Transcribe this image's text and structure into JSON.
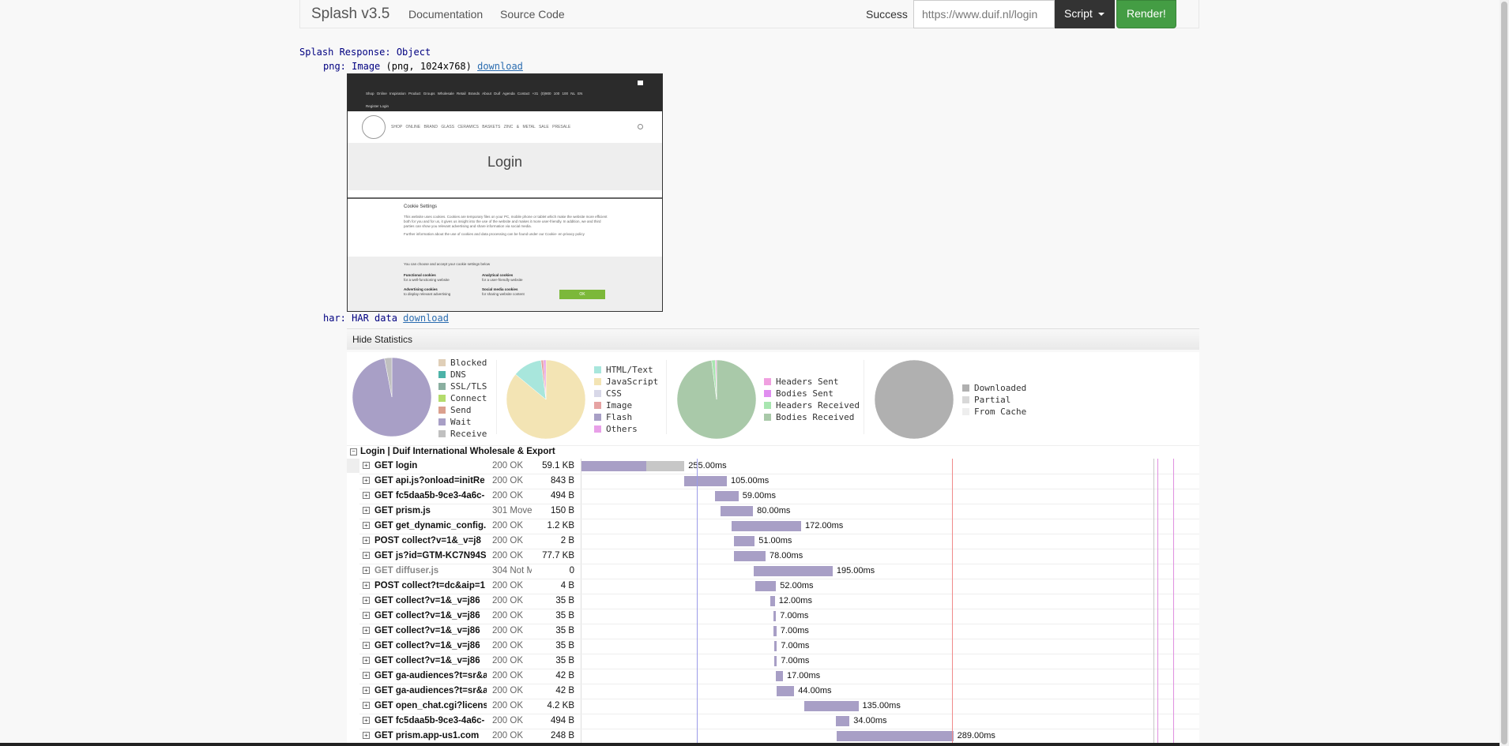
{
  "navbar": {
    "brand": "Splash v3.5",
    "links": [
      "Documentation",
      "Source Code"
    ],
    "status": "Success",
    "url_value": "https://www.duif.nl/login",
    "script_button": "Script",
    "render_button": "Render!"
  },
  "response": {
    "header_key": "Splash Response:",
    "header_type": "Object",
    "png_key": "png:",
    "png_type": "Image",
    "png_meta": "(png, 1024x768)",
    "png_download": "download",
    "har_key": "har:",
    "har_type": "HAR data",
    "har_download": "download"
  },
  "thumbnail": {
    "top_nav": "Shop Online  Inspiration  Product Groups  Wholesale  Retail  Brands  About Duif  Agenda  Contact  +31 (0)900 100 100  NL  EN",
    "top_nav2": "Register  Login",
    "menu": "SHOP ONLINE  BRAND  GLASS  CERAMICS  BASKETS  ZINC & METAL  SALE  PRESALE",
    "hero_title": "Login",
    "cookie_title": "Cookie Settings",
    "cookie_text": "This website uses cookies. Cookies are temporary files on your PC, mobile phone or tablet which make the website more efficient both for you and for us, it gives us insight into the use of the website and makes it more user-friendly. In addition, we and third parties can show you relevant advertising and share information via social media.",
    "cookie_text2": "Further information about the use of cookies and data processing can be found under our Cookie- en privacy policy",
    "cookie_choose": "You can choose and accept your cookie settings below",
    "opt1_title": "Functional cookies",
    "opt1_sub": "for a well-functioning website",
    "opt2_title": "Analytical cookies",
    "opt2_sub": "for a user-friendly website",
    "opt3_title": "Advertising cookies",
    "opt3_sub": "to display relevant advertising",
    "opt4_title": "Social media cookies",
    "opt4_sub": "for sharing website content",
    "ok": "OK"
  },
  "stats": {
    "toggle_label": "Hide Statistics",
    "timing_legend": [
      {
        "label": "Blocked",
        "color": "#e0cfb8"
      },
      {
        "label": "DNS",
        "color": "#4db3a8"
      },
      {
        "label": "SSL/TLS",
        "color": "#8aafa0"
      },
      {
        "label": "Connect",
        "color": "#b4dc6c"
      },
      {
        "label": "Send",
        "color": "#dba08e"
      },
      {
        "label": "Wait",
        "color": "#a89fc6"
      },
      {
        "label": "Receive",
        "color": "#c0c0c0"
      }
    ],
    "type_legend": [
      {
        "label": "HTML/Text",
        "color": "#a8e6dc"
      },
      {
        "label": "JavaScript",
        "color": "#f3e4b4"
      },
      {
        "label": "CSS",
        "color": "#d8d8e8"
      },
      {
        "label": "Image",
        "color": "#e6a3a3"
      },
      {
        "label": "Flash",
        "color": "#a89fc6"
      },
      {
        "label": "Others",
        "color": "#e8a0e8"
      }
    ],
    "transfer_legend": [
      {
        "label": "Headers Sent",
        "color": "#f0a0e0"
      },
      {
        "label": "Bodies Sent",
        "color": "#e08ef0"
      },
      {
        "label": "Headers Received",
        "color": "#a8e6b0"
      },
      {
        "label": "Bodies Received",
        "color": "#a9c9a9"
      }
    ],
    "cache_legend": [
      {
        "label": "Downloaded",
        "color": "#b0b0b0"
      },
      {
        "label": "Partial",
        "color": "#d8d8d8"
      },
      {
        "label": "From Cache",
        "color": "#eeeeee"
      }
    ],
    "timing_pie": [
      {
        "label": "Wait",
        "value": 0.97
      },
      {
        "label": "Receive",
        "value": 0.03
      }
    ],
    "type_pie": [
      {
        "label": "JavaScript",
        "value": 0.86
      },
      {
        "label": "HTML/Text",
        "value": 0.12
      },
      {
        "label": "Image",
        "value": 0.01
      },
      {
        "label": "Others",
        "value": 0.01
      }
    ],
    "transfer_pie": [
      {
        "label": "Bodies Received",
        "value": 0.98
      },
      {
        "label": "Headers Received",
        "value": 0.015
      },
      {
        "label": "Headers Sent",
        "value": 0.005
      }
    ],
    "cache_pie": [
      {
        "label": "Downloaded",
        "value": 1.0
      }
    ]
  },
  "har": {
    "page_title": "Login | Duif International Wholesale & Export",
    "entries": [
      {
        "method_url": "GET login",
        "status": "200 OK",
        "size": "59.1 KB",
        "start_ms": 0,
        "duration": "255.00ms",
        "dur_ms": 255,
        "wait_ms": 160
      },
      {
        "method_url": "GET api.js?onload=initRe",
        "status": "200 OK",
        "size": "843 B",
        "start_ms": 255,
        "duration": "105.00ms",
        "dur_ms": 105
      },
      {
        "method_url": "GET fc5daa5b-9ce3-4a6c-",
        "status": "200 OK",
        "size": "494 B",
        "start_ms": 330,
        "duration": "59.00ms",
        "dur_ms": 59
      },
      {
        "method_url": "GET prism.js",
        "status": "301 Move",
        "size": "150 B",
        "start_ms": 345,
        "duration": "80.00ms",
        "dur_ms": 80
      },
      {
        "method_url": "GET get_dynamic_config.",
        "status": "200 OK",
        "size": "1.2 KB",
        "start_ms": 372,
        "duration": "172.00ms",
        "dur_ms": 172
      },
      {
        "method_url": "POST collect?v=1&_v=j8",
        "status": "200 OK",
        "size": "2 B",
        "start_ms": 378,
        "duration": "51.00ms",
        "dur_ms": 51
      },
      {
        "method_url": "GET js?id=GTM-KC7N94S",
        "status": "200 OK",
        "size": "77.7 KB",
        "start_ms": 378,
        "duration": "78.00ms",
        "dur_ms": 78
      },
      {
        "method_url": "GET diffuser.js",
        "status": "304 Not M",
        "size": "0",
        "start_ms": 427,
        "duration": "195.00ms",
        "dur_ms": 195,
        "gray": true
      },
      {
        "method_url": "POST collect?t=dc&aip=1",
        "status": "200 OK",
        "size": "4 B",
        "start_ms": 430,
        "duration": "52.00ms",
        "dur_ms": 52
      },
      {
        "method_url": "GET collect?v=1&_v=j86",
        "status": "200 OK",
        "size": "35 B",
        "start_ms": 467,
        "duration": "12.00ms",
        "dur_ms": 12
      },
      {
        "method_url": "GET collect?v=1&_v=j86",
        "status": "200 OK",
        "size": "35 B",
        "start_ms": 475,
        "duration": "7.00ms",
        "dur_ms": 7
      },
      {
        "method_url": "GET collect?v=1&_v=j86",
        "status": "200 OK",
        "size": "35 B",
        "start_ms": 476,
        "duration": "7.00ms",
        "dur_ms": 7
      },
      {
        "method_url": "GET collect?v=1&_v=j86",
        "status": "200 OK",
        "size": "35 B",
        "start_ms": 477,
        "duration": "7.00ms",
        "dur_ms": 7
      },
      {
        "method_url": "GET collect?v=1&_v=j86",
        "status": "200 OK",
        "size": "35 B",
        "start_ms": 477,
        "duration": "7.00ms",
        "dur_ms": 7
      },
      {
        "method_url": "GET ga-audiences?t=sr&a",
        "status": "200 OK",
        "size": "42 B",
        "start_ms": 482,
        "duration": "17.00ms",
        "dur_ms": 17
      },
      {
        "method_url": "GET ga-audiences?t=sr&a",
        "status": "200 OK",
        "size": "42 B",
        "start_ms": 483,
        "duration": "44.00ms",
        "dur_ms": 44
      },
      {
        "method_url": "GET open_chat.cgi?licens",
        "status": "200 OK",
        "size": "4.2 KB",
        "start_ms": 551,
        "duration": "135.00ms",
        "dur_ms": 135
      },
      {
        "method_url": "GET fc5daa5b-9ce3-4a6c-",
        "status": "200 OK",
        "size": "494 B",
        "start_ms": 630,
        "duration": "34.00ms",
        "dur_ms": 34
      },
      {
        "method_url": "GET prism.app-us1.com",
        "status": "200 OK",
        "size": "248 B",
        "start_ms": 632,
        "duration": "289.00ms",
        "dur_ms": 289
      }
    ],
    "markers_ms": [
      {
        "ms": 285,
        "color": "#9a9ae8"
      },
      {
        "ms": 917,
        "color": "#f08a8a"
      },
      {
        "ms": 1417,
        "color": "#c7c7c7"
      },
      {
        "ms": 1427,
        "color": "#e090e0"
      },
      {
        "ms": 1465,
        "color": "#e090e0"
      }
    ]
  }
}
